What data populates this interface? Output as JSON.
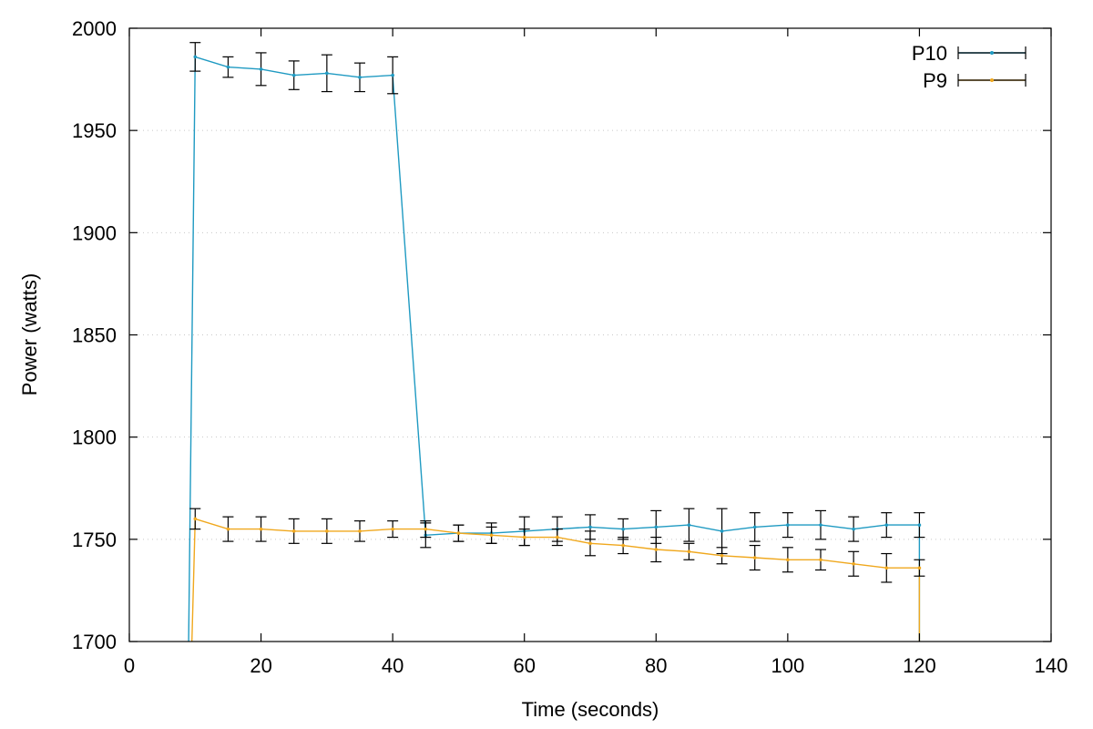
{
  "chart_data": {
    "type": "line",
    "title": "",
    "xlabel": "Time (seconds)",
    "ylabel": "Power (watts)",
    "xlim": [
      0,
      140
    ],
    "ylim": [
      1700,
      2000
    ],
    "xticks": [
      0,
      20,
      40,
      60,
      80,
      100,
      120,
      140
    ],
    "yticks": [
      1700,
      1750,
      1800,
      1850,
      1900,
      1950,
      2000
    ],
    "grid": "horizontal-dotted",
    "legend_position": "top-right",
    "error_bars": true,
    "series": [
      {
        "name": "P10",
        "color": "#1f9ac2",
        "points": [
          {
            "x": 9,
            "y": 1700,
            "err": null
          },
          {
            "x": 10,
            "y": 1986,
            "err": 7
          },
          {
            "x": 15,
            "y": 1981,
            "err": 5
          },
          {
            "x": 20,
            "y": 1980,
            "err": 8
          },
          {
            "x": 25,
            "y": 1977,
            "err": 7
          },
          {
            "x": 30,
            "y": 1978,
            "err": 9
          },
          {
            "x": 35,
            "y": 1976,
            "err": 7
          },
          {
            "x": 40,
            "y": 1977,
            "err": 9
          },
          {
            "x": 45,
            "y": 1752,
            "err": 6
          },
          {
            "x": 50,
            "y": 1753,
            "err": 4
          },
          {
            "x": 55,
            "y": 1753,
            "err": 5
          },
          {
            "x": 60,
            "y": 1754,
            "err": 7
          },
          {
            "x": 65,
            "y": 1755,
            "err": 6
          },
          {
            "x": 70,
            "y": 1756,
            "err": 6
          },
          {
            "x": 75,
            "y": 1755,
            "err": 5
          },
          {
            "x": 80,
            "y": 1756,
            "err": 8
          },
          {
            "x": 85,
            "y": 1757,
            "err": 8
          },
          {
            "x": 90,
            "y": 1754,
            "err": 11
          },
          {
            "x": 95,
            "y": 1756,
            "err": 7
          },
          {
            "x": 100,
            "y": 1757,
            "err": 6
          },
          {
            "x": 105,
            "y": 1757,
            "err": 7
          },
          {
            "x": 110,
            "y": 1755,
            "err": 6
          },
          {
            "x": 115,
            "y": 1757,
            "err": 6
          },
          {
            "x": 120,
            "y": 1757,
            "err": 6
          },
          {
            "x": 120,
            "y": 1700,
            "err": null
          }
        ]
      },
      {
        "name": "P9",
        "color": "#f0a81e",
        "points": [
          {
            "x": 9.5,
            "y": 1700,
            "err": null
          },
          {
            "x": 10,
            "y": 1760,
            "err": 5
          },
          {
            "x": 15,
            "y": 1755,
            "err": 6
          },
          {
            "x": 20,
            "y": 1755,
            "err": 6
          },
          {
            "x": 25,
            "y": 1754,
            "err": 6
          },
          {
            "x": 30,
            "y": 1754,
            "err": 6
          },
          {
            "x": 35,
            "y": 1754,
            "err": 5
          },
          {
            "x": 40,
            "y": 1755,
            "err": 4
          },
          {
            "x": 45,
            "y": 1755,
            "err": 4
          },
          {
            "x": 50,
            "y": 1753,
            "err": 4
          },
          {
            "x": 55,
            "y": 1752,
            "err": 4
          },
          {
            "x": 60,
            "y": 1751,
            "err": 4
          },
          {
            "x": 65,
            "y": 1751,
            "err": 4
          },
          {
            "x": 70,
            "y": 1748,
            "err": 6
          },
          {
            "x": 75,
            "y": 1747,
            "err": 4
          },
          {
            "x": 80,
            "y": 1745,
            "err": 6
          },
          {
            "x": 85,
            "y": 1744,
            "err": 4
          },
          {
            "x": 90,
            "y": 1742,
            "err": 4
          },
          {
            "x": 95,
            "y": 1741,
            "err": 6
          },
          {
            "x": 100,
            "y": 1740,
            "err": 6
          },
          {
            "x": 105,
            "y": 1740,
            "err": 5
          },
          {
            "x": 110,
            "y": 1738,
            "err": 6
          },
          {
            "x": 115,
            "y": 1736,
            "err": 7
          },
          {
            "x": 120,
            "y": 1736,
            "err": 4
          },
          {
            "x": 120,
            "y": 1700,
            "err": null
          }
        ]
      }
    ]
  }
}
